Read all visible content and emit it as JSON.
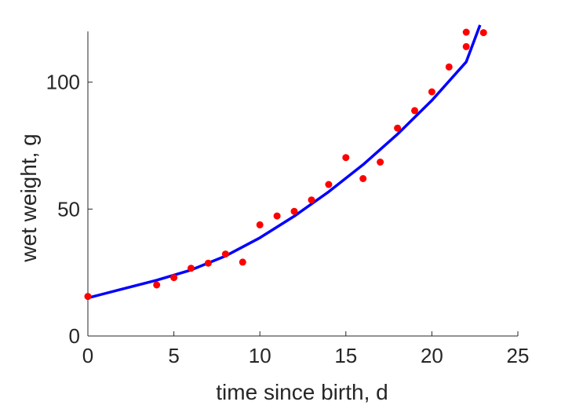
{
  "chart_data": {
    "type": "scatter",
    "title": "",
    "xlabel": "time since birth, d",
    "ylabel": "wet weight, g",
    "xlim": [
      0,
      25
    ],
    "ylim": [
      0,
      120
    ],
    "xticks": [
      0,
      5,
      10,
      15,
      20,
      25
    ],
    "yticks": [
      0,
      50,
      100
    ],
    "grid": false,
    "series": [
      {
        "kind": "scatter",
        "color": "#ff0000",
        "points": [
          [
            0,
            15.6
          ],
          [
            4,
            20.1
          ],
          [
            5,
            23.0
          ],
          [
            6,
            26.7
          ],
          [
            7,
            28.7
          ],
          [
            8,
            32.3
          ],
          [
            9,
            29.1
          ],
          [
            10,
            43.8
          ],
          [
            11,
            47.3
          ],
          [
            12,
            49.1
          ],
          [
            13,
            53.6
          ],
          [
            14,
            59.7
          ],
          [
            15,
            70.3
          ],
          [
            16,
            62.0
          ],
          [
            17,
            68.5
          ],
          [
            18,
            81.9
          ],
          [
            19,
            88.8
          ],
          [
            20,
            96.2
          ],
          [
            21,
            106.0
          ],
          [
            22,
            114.0
          ],
          [
            22,
            119.7
          ],
          [
            23,
            119.5
          ]
        ]
      },
      {
        "kind": "line",
        "color": "#0000ff",
        "points": [
          [
            0,
            15.0
          ],
          [
            2,
            18.5
          ],
          [
            4,
            22.0
          ],
          [
            6,
            26.0
          ],
          [
            8,
            31.5
          ],
          [
            10,
            38.7
          ],
          [
            12,
            47.2
          ],
          [
            14,
            56.8
          ],
          [
            16,
            67.5
          ],
          [
            18,
            79.5
          ],
          [
            20,
            92.8
          ],
          [
            22,
            108.0
          ],
          [
            22.8,
            122.5
          ]
        ]
      }
    ]
  }
}
